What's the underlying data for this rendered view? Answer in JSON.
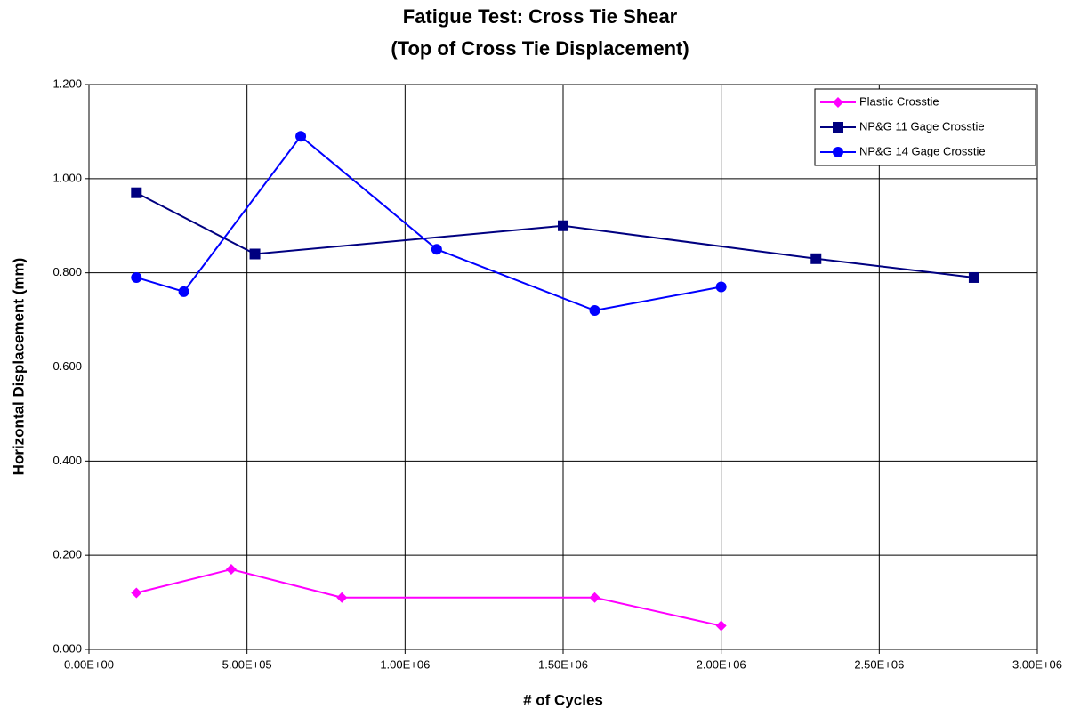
{
  "chart_data": {
    "type": "line",
    "title": "Fatigue Test: Cross Tie Shear",
    "subtitle": "(Top of Cross Tie Displacement)",
    "x_label": "# of Cycles",
    "y_label": "Horizontal Displacement (mm)",
    "xlim": [
      0,
      3000000
    ],
    "xticks": [
      {
        "value": 0,
        "label": "0.00E+00"
      },
      {
        "value": 500000,
        "label": "5.00E+05"
      },
      {
        "value": 1000000,
        "label": "1.00E+06"
      },
      {
        "value": 1500000,
        "label": "1.50E+06"
      },
      {
        "value": 2000000,
        "label": "2.00E+06"
      },
      {
        "value": 2500000,
        "label": "2.50E+06"
      },
      {
        "value": 3000000,
        "label": "3.00E+06"
      }
    ],
    "ylim": [
      0,
      1.2
    ],
    "yticks": [
      {
        "value": 0,
        "label": "0.000"
      },
      {
        "value": 0.2,
        "label": "0.200"
      },
      {
        "value": 0.4,
        "label": "0.400"
      },
      {
        "value": 0.6,
        "label": "0.600"
      },
      {
        "value": 0.8,
        "label": "0.800"
      },
      {
        "value": 1.0,
        "label": "1.000"
      },
      {
        "value": 1.2,
        "label": "1.200"
      }
    ],
    "grid": true,
    "legend": "top-right",
    "series": [
      {
        "name": "Plastic Crosstie",
        "color": "#ff00ff",
        "marker": "diamond",
        "x": [
          150000,
          450000,
          800000,
          1600000,
          2000000
        ],
        "values": [
          0.12,
          0.17,
          0.11,
          0.11,
          0.05
        ]
      },
      {
        "name": "NP&G 11 Gage Crosstie",
        "color": "#000080",
        "marker": "square",
        "x": [
          150000,
          525000,
          1500000,
          2300000,
          2800000
        ],
        "values": [
          0.97,
          0.84,
          0.9,
          0.83,
          0.79
        ]
      },
      {
        "name": "NP&G 14 Gage Crosstie",
        "color": "#0000ff",
        "marker": "circle",
        "x": [
          150000,
          300000,
          670000,
          1100000,
          1600000,
          2000000
        ],
        "values": [
          0.79,
          0.76,
          1.09,
          0.85,
          0.72,
          0.77
        ]
      }
    ]
  }
}
